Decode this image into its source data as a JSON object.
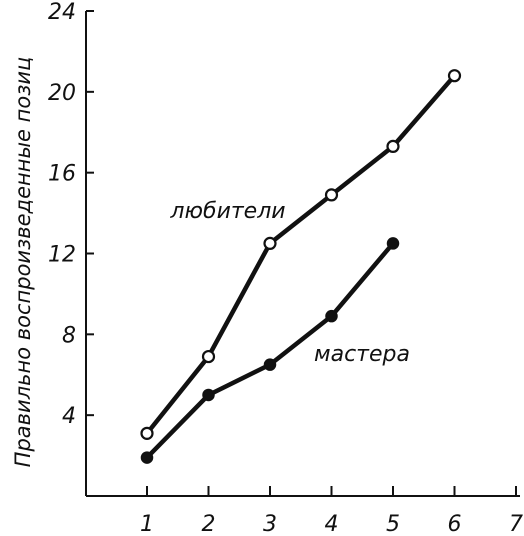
{
  "chart_data": {
    "type": "line",
    "ylabel": "Правильно воспроизведенные позиц",
    "xlabel": "",
    "x_ticks": [
      "1",
      "2",
      "3",
      "4",
      "5",
      "6",
      "7"
    ],
    "y_ticks": [
      "4",
      "8",
      "12",
      "16",
      "20",
      "24"
    ],
    "xlim": [
      0,
      7
    ],
    "ylim": [
      0,
      24
    ],
    "grid": false,
    "series": [
      {
        "name": "любители",
        "marker": "open-circle",
        "x": [
          1,
          2,
          3,
          4,
          5,
          6
        ],
        "values": [
          3.1,
          6.9,
          12.5,
          14.9,
          17.3,
          20.8
        ]
      },
      {
        "name": "мастера",
        "marker": "filled-circle",
        "x": [
          1,
          2,
          3,
          4,
          5
        ],
        "values": [
          1.9,
          5.0,
          6.5,
          8.9,
          12.5
        ]
      }
    ]
  }
}
